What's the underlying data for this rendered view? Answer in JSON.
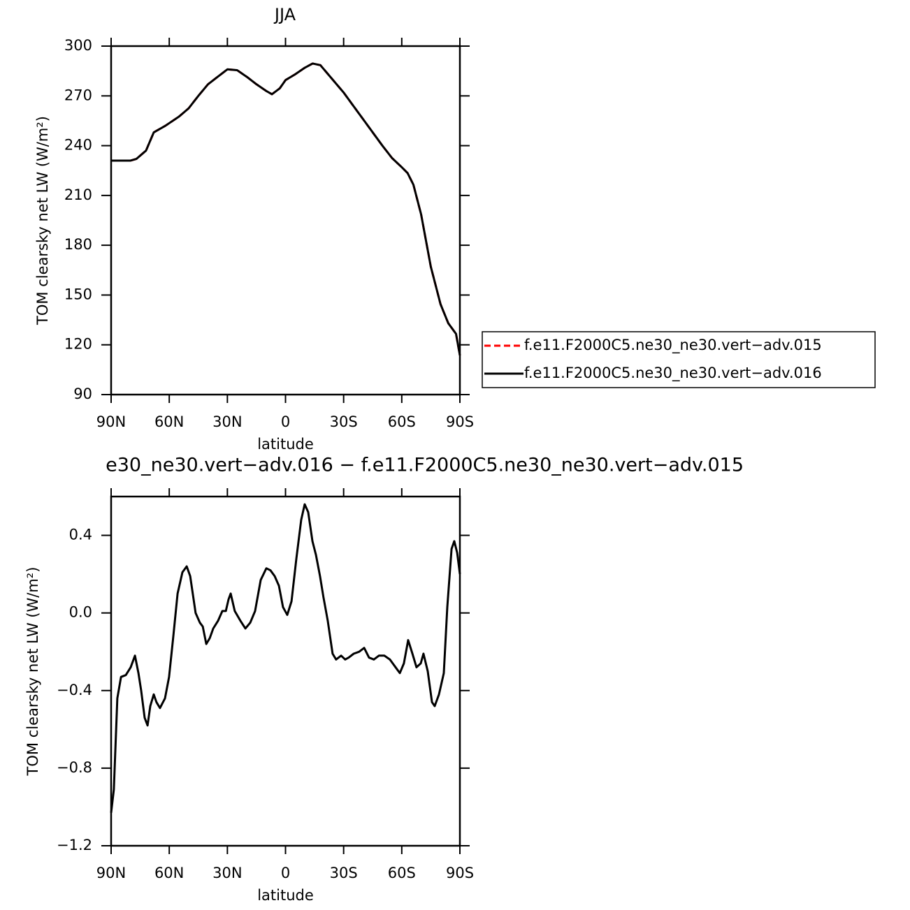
{
  "chart_data": [
    {
      "type": "line",
      "title": "JJA",
      "xlabel": "latitude",
      "ylabel": "TOM clearsky net LW (W/m²)",
      "x": [
        90,
        85,
        80,
        77,
        72,
        68,
        62,
        55,
        50,
        45,
        40,
        35,
        30,
        25,
        20,
        15,
        10,
        7,
        3,
        0,
        -5,
        -10,
        -14,
        -18,
        -22,
        -30,
        -40,
        -50,
        -55,
        -60,
        -63,
        -66,
        -70,
        -75,
        -80,
        -84,
        -88,
        -90
      ],
      "series": [
        {
          "name": "f.e11.F2000C5.ne30_ne30.vert−adv.015",
          "color": "#ff0000",
          "line_style": "dashed",
          "values": [
            231,
            231,
            231,
            232,
            237,
            248,
            252,
            257.5,
            262.5,
            270,
            277,
            281.5,
            286,
            285.5,
            281.5,
            277,
            273,
            271,
            274.5,
            279.5,
            283,
            287,
            289.5,
            288.5,
            283,
            272,
            256,
            240,
            232.5,
            227,
            223.5,
            216.5,
            198.5,
            167,
            144.5,
            133,
            126.6,
            113.6
          ]
        },
        {
          "name": "f.e11.F2000C5.ne30_ne30.vert−adv.016",
          "color": "#000000",
          "line_style": "solid",
          "values": [
            231,
            231,
            231,
            232,
            237,
            248,
            252,
            257.5,
            262.5,
            270,
            277,
            281.5,
            286,
            285.5,
            281.5,
            277,
            273,
            271,
            274.5,
            279.5,
            283,
            287,
            289.5,
            288.5,
            283,
            272,
            256,
            240,
            232.5,
            227,
            223.5,
            216.5,
            198.5,
            167,
            144.5,
            133,
            126.6,
            113.6
          ]
        }
      ],
      "xlim": [
        90,
        -90
      ],
      "ylim": [
        90,
        300
      ],
      "xticks": [
        {
          "value": 90,
          "label": "90N"
        },
        {
          "value": 60,
          "label": "60N"
        },
        {
          "value": 30,
          "label": "30N"
        },
        0,
        {
          "value": -30,
          "label": "30S"
        },
        {
          "value": -60,
          "label": "60S"
        },
        {
          "value": -90,
          "label": "90S"
        }
      ],
      "yticks": [
        90,
        120,
        150,
        180,
        210,
        240,
        270,
        300
      ],
      "legend": "right"
    },
    {
      "type": "line",
      "title": "e30_ne30.vert−adv.016 − f.e11.F2000C5.ne30_ne30.vert−adv.015",
      "xlabel": "latitude",
      "ylabel": "TOM clearsky net LW (W/m²)",
      "x": [
        90,
        88.6,
        86.8,
        84.9,
        82.4,
        79.9,
        77.7,
        75.9,
        74.5,
        72.7,
        71.2,
        69.8,
        68.0,
        66.6,
        64.8,
        62.2,
        60.1,
        57.9,
        55.7,
        53.2,
        51.0,
        49.2,
        46.4,
        44.2,
        42.7,
        40.9,
        39.1,
        37.3,
        34.8,
        32.6,
        30.8,
        29.4,
        28.3,
        26.2,
        23.3,
        20.7,
        18.2,
        15.7,
        12.8,
        9.9,
        7.8,
        5.6,
        3.4,
        1.3,
        -0.9,
        -3.1,
        -5.6,
        -8.1,
        -9.9,
        -11.7,
        -13.9,
        -15.7,
        -17.8,
        -19.6,
        -21.8,
        -24.3,
        -26.1,
        -28.7,
        -30.8,
        -32.6,
        -35.2,
        -38.0,
        -40.6,
        -43.1,
        -45.6,
        -48.2,
        -51.0,
        -53.9,
        -56.8,
        -59.0,
        -61.1,
        -63.3,
        -65.5,
        -67.6,
        -69.8,
        -71.2,
        -73.4,
        -75.6,
        -77.0,
        -79.2,
        -81.7,
        -83.5,
        -85.7,
        -87.1,
        -88.6,
        -90
      ],
      "values": [
        -1.03,
        -0.91,
        -0.44,
        -0.33,
        -0.32,
        -0.28,
        -0.22,
        -0.31,
        -0.4,
        -0.54,
        -0.58,
        -0.48,
        -0.42,
        -0.46,
        -0.49,
        -0.44,
        -0.33,
        -0.12,
        0.1,
        0.21,
        0.24,
        0.19,
        0.0,
        -0.05,
        -0.07,
        -0.16,
        -0.13,
        -0.08,
        -0.04,
        0.01,
        0.01,
        0.07,
        0.1,
        0.01,
        -0.04,
        -0.08,
        -0.05,
        0.01,
        0.17,
        0.23,
        0.22,
        0.19,
        0.14,
        0.03,
        -0.01,
        0.06,
        0.28,
        0.48,
        0.56,
        0.52,
        0.37,
        0.3,
        0.19,
        0.08,
        -0.04,
        -0.21,
        -0.24,
        -0.22,
        -0.24,
        -0.23,
        -0.21,
        -0.2,
        -0.18,
        -0.23,
        -0.24,
        -0.22,
        -0.22,
        -0.24,
        -0.28,
        -0.31,
        -0.26,
        -0.14,
        -0.21,
        -0.28,
        -0.26,
        -0.21,
        -0.3,
        -0.46,
        -0.48,
        -0.42,
        -0.31,
        0.03,
        0.33,
        0.37,
        0.31,
        0.2
      ],
      "color": "#000000",
      "xlim": [
        90,
        -90
      ],
      "ylim": [
        -1.2,
        0.6
      ],
      "xticks": [
        {
          "value": 90,
          "label": "90N"
        },
        {
          "value": 60,
          "label": "60N"
        },
        {
          "value": 30,
          "label": "30N"
        },
        0,
        {
          "value": -30,
          "label": "30S"
        },
        {
          "value": -60,
          "label": "60S"
        },
        {
          "value": -90,
          "label": "90S"
        }
      ],
      "yticks": [
        {
          "value": -1.2,
          "label": "−1.2"
        },
        {
          "value": -0.8,
          "label": "−0.8"
        },
        {
          "value": -0.4,
          "label": "−0.4"
        },
        {
          "value": 0.0,
          "label": "0.0"
        },
        0.4
      ]
    }
  ]
}
